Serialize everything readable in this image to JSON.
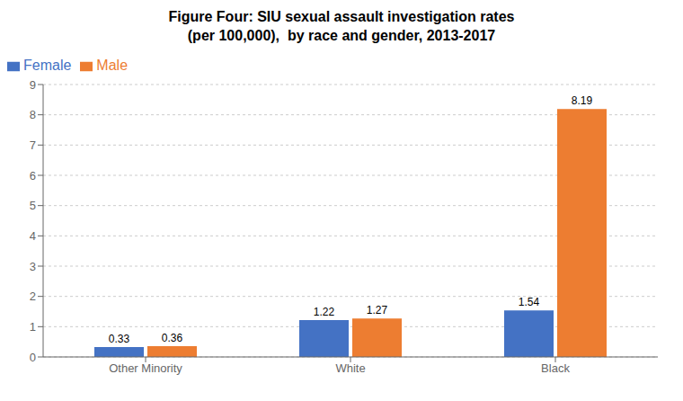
{
  "chart_data": {
    "type": "bar",
    "title": "Figure Four: SIU sexual assault investigation rates\n(per 100,000),  by race and gender, 2013-2017",
    "categories": [
      "Other Minority",
      "White",
      "Black"
    ],
    "series": [
      {
        "name": "Female",
        "color": "#4472C4",
        "values": [
          0.33,
          1.22,
          1.54
        ]
      },
      {
        "name": "Male",
        "color": "#ED7D31",
        "values": [
          0.36,
          1.27,
          8.19
        ]
      }
    ],
    "ylim": [
      0,
      9
    ],
    "yticks": [
      0,
      1,
      2,
      3,
      4,
      5,
      6,
      7,
      8,
      9
    ],
    "grid": true,
    "legend": "upper left",
    "data_labels": true
  }
}
